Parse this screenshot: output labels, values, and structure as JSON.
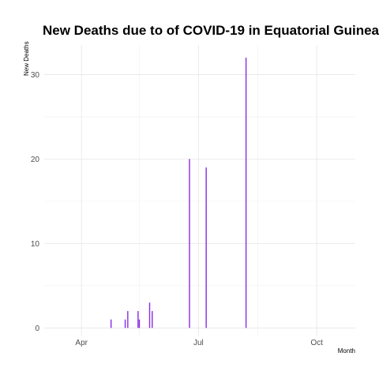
{
  "chart_data": {
    "type": "bar",
    "title": "New Deaths due to of COVID-19 in Equatorial Guinea",
    "xlabel": "Month",
    "ylabel": "New Deaths",
    "x_ticks": [
      "Apr",
      "Jul",
      "Oct"
    ],
    "y_ticks": [
      "0",
      "10",
      "20",
      "30"
    ],
    "ylim": [
      -1,
      33.5
    ],
    "xlim": [
      "2020-03-03",
      "2020-10-31"
    ],
    "grid": true,
    "bar_color": "#8A2BE2",
    "points": [
      {
        "x": "2020-04-24",
        "y": 1
      },
      {
        "x": "2020-05-05",
        "y": 1
      },
      {
        "x": "2020-05-07",
        "y": 2
      },
      {
        "x": "2020-05-15",
        "y": 2
      },
      {
        "x": "2020-05-16",
        "y": 1
      },
      {
        "x": "2020-05-24",
        "y": 3
      },
      {
        "x": "2020-05-26",
        "y": 2
      },
      {
        "x": "2020-06-24",
        "y": 20
      },
      {
        "x": "2020-07-07",
        "y": 19
      },
      {
        "x": "2020-08-07",
        "y": 32
      }
    ]
  }
}
